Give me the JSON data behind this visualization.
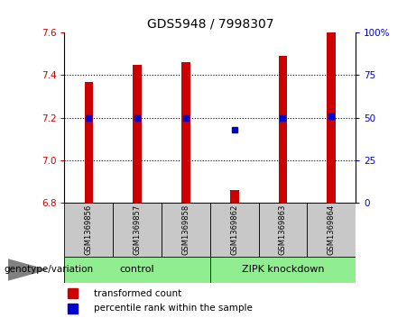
{
  "title": "GDS5948 / 7998307",
  "samples": [
    "GSM1369856",
    "GSM1369857",
    "GSM1369858",
    "GSM1369862",
    "GSM1369863",
    "GSM1369864"
  ],
  "red_values": [
    7.37,
    7.45,
    7.46,
    6.86,
    7.49,
    7.6
  ],
  "blue_right_axis": [
    50,
    50,
    50,
    43,
    50,
    51
  ],
  "ylim_left": [
    6.8,
    7.6
  ],
  "ylim_right": [
    0,
    100
  ],
  "yticks_left": [
    6.8,
    7.0,
    7.2,
    7.4,
    7.6
  ],
  "yticks_right": [
    0,
    25,
    50,
    75,
    100
  ],
  "ytick_right_labels": [
    "0",
    "25",
    "50",
    "75",
    "100%"
  ],
  "groups": [
    {
      "label": "control",
      "indices": [
        0,
        1,
        2
      ],
      "color": "#90EE90"
    },
    {
      "label": "ZIPK knockdown",
      "indices": [
        3,
        4,
        5
      ],
      "color": "#90EE90"
    }
  ],
  "group_label_prefix": "genotype/variation",
  "legend_red": "transformed count",
  "legend_blue": "percentile rank within the sample",
  "bar_color": "#CC0000",
  "dot_color": "#0000CC",
  "tick_color_left": "#CC0000",
  "tick_color_right": "#0000CC",
  "bg_color": "#C8C8C8",
  "plot_bg_color": "#FFFFFF",
  "bar_width": 0.18
}
